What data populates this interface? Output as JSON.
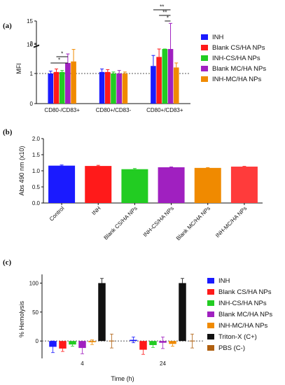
{
  "panels": {
    "a": "(a)",
    "b": "(b)",
    "c": "(c)"
  },
  "chart_data": [
    {
      "type": "bar",
      "panel": "(a)",
      "ylabel": "MFI",
      "ylim_lower": [
        0,
        2
      ],
      "ylim_upper": [
        9,
        15
      ],
      "yticks_lower": [
        0,
        1,
        2
      ],
      "yticks_upper": [
        10,
        15
      ],
      "categories": [
        "CD80-/CD83+",
        "CD80+/CD83-",
        "CD80+/CD83+"
      ],
      "reference_line": 1,
      "colors": [
        "#1a1aff",
        "#ff1a1a",
        "#22cc22",
        "#a020c0",
        "#f08a00"
      ],
      "series": [
        {
          "name": "INH",
          "values": [
            1.0,
            1.05,
            1.25
          ],
          "errors": [
            0.08,
            0.1,
            0.35
          ]
        },
        {
          "name": "Blank CS/HA NPs",
          "values": [
            1.05,
            1.05,
            1.55
          ],
          "errors": [
            0.1,
            0.08,
            0.6
          ]
        },
        {
          "name": "INH-CS/HA NPs",
          "values": [
            1.05,
            1.0,
            2.5
          ],
          "errors": [
            0.05,
            0.05,
            1.6
          ]
        },
        {
          "name": "Blank MC/HA NPs",
          "values": [
            1.35,
            1.0,
            9.0
          ],
          "errors": [
            0.3,
            0.1,
            5.5
          ]
        },
        {
          "name": "INH-MC/HA NPs",
          "values": [
            1.4,
            1.0,
            1.2
          ],
          "errors": [
            0.4,
            0.05,
            0.15
          ]
        }
      ],
      "significance": [
        {
          "group": "CD80-/CD83+",
          "from": "INH",
          "to": "Blank MC/HA NPs",
          "label": "*"
        },
        {
          "group": "CD80-/CD83+",
          "from": "Blank CS/HA NPs",
          "to": "Blank MC/HA NPs",
          "label": "*"
        },
        {
          "group": "CD80+/CD83+",
          "from": "INH",
          "to": "Blank MC/HA NPs",
          "label": "**"
        },
        {
          "group": "CD80+/CD83+",
          "from": "Blank CS/HA NPs",
          "to": "Blank MC/HA NPs",
          "label": "**"
        },
        {
          "group": "CD80+/CD83+",
          "from": "INH-CS/HA NPs",
          "to": "Blank MC/HA NPs",
          "label": "*"
        }
      ]
    },
    {
      "type": "bar",
      "panel": "(b)",
      "ylabel": "Abs 490 nm (x10)",
      "ylim": [
        0,
        2.0
      ],
      "yticks": [
        0.0,
        0.5,
        1.0,
        1.5,
        2.0
      ],
      "ytick_labels": [
        "0.0",
        "0.5",
        "1.0",
        "1.5",
        "2.0"
      ],
      "categories": [
        "Control",
        "INH",
        "Blank CS/HA NPs",
        "INH-CS/HA NPs",
        "Blank MC/HA NPs",
        "INH-MC/HA NPs"
      ],
      "values": [
        1.16,
        1.15,
        1.05,
        1.11,
        1.09,
        1.13
      ],
      "errors": [
        0.02,
        0.02,
        0.02,
        0.01,
        0.01,
        0.01
      ],
      "colors": [
        "#1a1aff",
        "#ff1a1a",
        "#22cc22",
        "#a020c0",
        "#f08a00",
        "#ff3b3b"
      ]
    },
    {
      "type": "bar",
      "panel": "(c)",
      "ylabel": "% Hemolysis",
      "xlabel": "Time (h)",
      "ylim": [
        -30,
        115
      ],
      "yticks": [
        0,
        50,
        100
      ],
      "categories": [
        "4",
        "24"
      ],
      "reference_line": 0,
      "series": [
        {
          "name": "INH",
          "color": "#1a1aff",
          "values": [
            -10,
            2
          ],
          "errors": [
            10,
            5
          ]
        },
        {
          "name": "Blank CS/HA NPs",
          "color": "#ff1a1a",
          "values": [
            -13,
            -15
          ],
          "errors": [
            5,
            8
          ]
        },
        {
          "name": "INH-CS/HA NPs",
          "color": "#22cc22",
          "values": [
            -6,
            -7
          ],
          "errors": [
            3,
            4
          ]
        },
        {
          "name": "Blank MC/HA NPs",
          "color": "#a020c0",
          "values": [
            -12,
            -3
          ],
          "errors": [
            10,
            10
          ]
        },
        {
          "name": "INH-MC/HA NPs",
          "color": "#f08a00",
          "values": [
            -2,
            -5
          ],
          "errors": [
            4,
            4
          ]
        },
        {
          "name": "Triton-X (C+)",
          "color": "#111111",
          "values": [
            100,
            100
          ],
          "errors": [
            8,
            8
          ]
        },
        {
          "name": "PBS (C-)",
          "color": "#b06010",
          "values": [
            0,
            0
          ],
          "errors": [
            12,
            12
          ]
        }
      ]
    }
  ]
}
